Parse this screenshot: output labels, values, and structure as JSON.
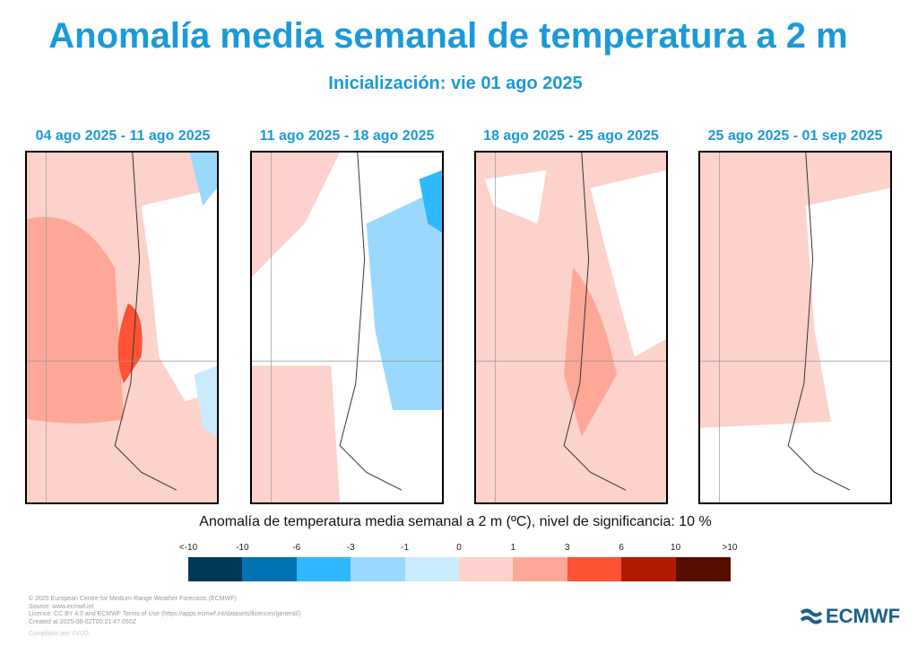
{
  "title": "Anomalía media semanal de temperatura a 2 m",
  "subtitle": "Inicialización: vie 01 ago 2025",
  "panels": [
    {
      "title": "04 ago 2025 - 11 ago 2025"
    },
    {
      "title": "11 ago 2025 - 18 ago 2025"
    },
    {
      "title": "18 ago 2025 - 25 ago 2025"
    },
    {
      "title": "25 ago 2025 - 01 sep 2025"
    }
  ],
  "legend": {
    "title": "Anomalía de temperatura media semanal a 2 m (ºC), nivel de significancia: 10 %",
    "labels": [
      "<-10",
      "-10",
      "-6",
      "-3",
      "-1",
      "0",
      "1",
      "3",
      "6",
      "10",
      ">10"
    ],
    "colors": [
      "#003a57",
      "#0072b1",
      "#2fb8fd",
      "#9ad9fd",
      "#c9ebfd",
      "#fdd2cc",
      "#fda896",
      "#fd5234",
      "#b01b00",
      "#570d00"
    ]
  },
  "footer": {
    "lines": [
      "© 2025 European Centre for Medium-Range Weather Forecasts (ECMWF)",
      "Source: www.ecmwf.int",
      "Licence: CC BY 4.0 and ECMWF Terms of Use (https://apps.ecmwf.int/datasets/licences/general/)",
      "Created at 2025-08-02T00:21:47.050Z"
    ],
    "compiled": "Compilado por VVUG"
  },
  "logo": "ECMWF"
}
